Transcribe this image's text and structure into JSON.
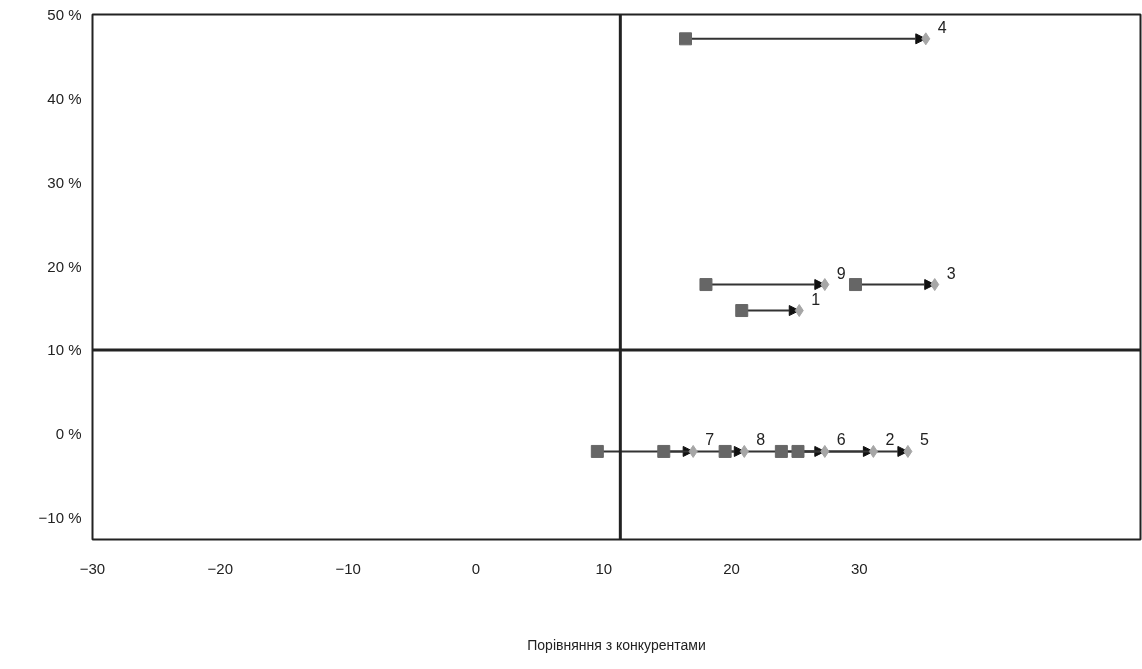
{
  "chart_data": {
    "type": "scatter",
    "xlim": [
      -30,
      52
    ],
    "ylim": [
      -12.6,
      50
    ],
    "xlabel": "Порівняння з конкурентами",
    "xticks": [
      -30,
      -20,
      -10,
      0,
      10,
      20,
      30
    ],
    "yticks": [
      {
        "value": -10,
        "label": "−10 %"
      },
      {
        "value": 0,
        "label": "0 %"
      },
      {
        "value": 10,
        "label": "10 %"
      },
      {
        "value": 20,
        "label": "20 %"
      },
      {
        "value": 30,
        "label": "30 %"
      },
      {
        "value": 40,
        "label": "40 %"
      },
      {
        "value": 50,
        "label": "50 %"
      }
    ],
    "grid": false,
    "series": [
      {
        "marker": "square",
        "color": "#666666",
        "x": [
          16.4,
          18.0,
          20.8,
          29.7,
          9.5,
          14.7,
          19.5,
          23.9,
          25.2
        ],
        "values": [
          47.1,
          17.8,
          14.7,
          17.8,
          -2.1,
          -2.1,
          -2.1,
          -2.1,
          -2.1
        ]
      },
      {
        "marker": "diamond",
        "color": "#a6a6a6",
        "x": [
          35.2,
          27.3,
          25.3,
          35.9,
          17.0,
          27.3,
          21.0,
          31.1,
          33.8
        ],
        "values": [
          47.1,
          17.8,
          14.7,
          17.8,
          -2.1,
          -2.1,
          -2.1,
          -2.1,
          -2.1
        ]
      }
    ],
    "ref_lines": [
      {
        "axis": "x",
        "value": 11.3,
        "color": "#222222"
      },
      {
        "axis": "y",
        "value": 10,
        "color": "#222222"
      }
    ],
    "annotations": [
      {
        "text": "4",
        "x": 35.2,
        "y": 47.1
      },
      {
        "text": "9",
        "x": 27.3,
        "y": 17.8
      },
      {
        "text": "1",
        "x": 25.3,
        "y": 14.7
      },
      {
        "text": "3",
        "x": 35.9,
        "y": 17.8
      },
      {
        "text": "7",
        "x": 17.0,
        "y": -2.1
      },
      {
        "text": "6",
        "x": 27.3,
        "y": -2.1
      },
      {
        "text": "8",
        "x": 21.0,
        "y": -2.1
      },
      {
        "text": "2",
        "x": 31.1,
        "y": -2.1
      },
      {
        "text": "5",
        "x": 33.8,
        "y": -2.1
      }
    ]
  }
}
